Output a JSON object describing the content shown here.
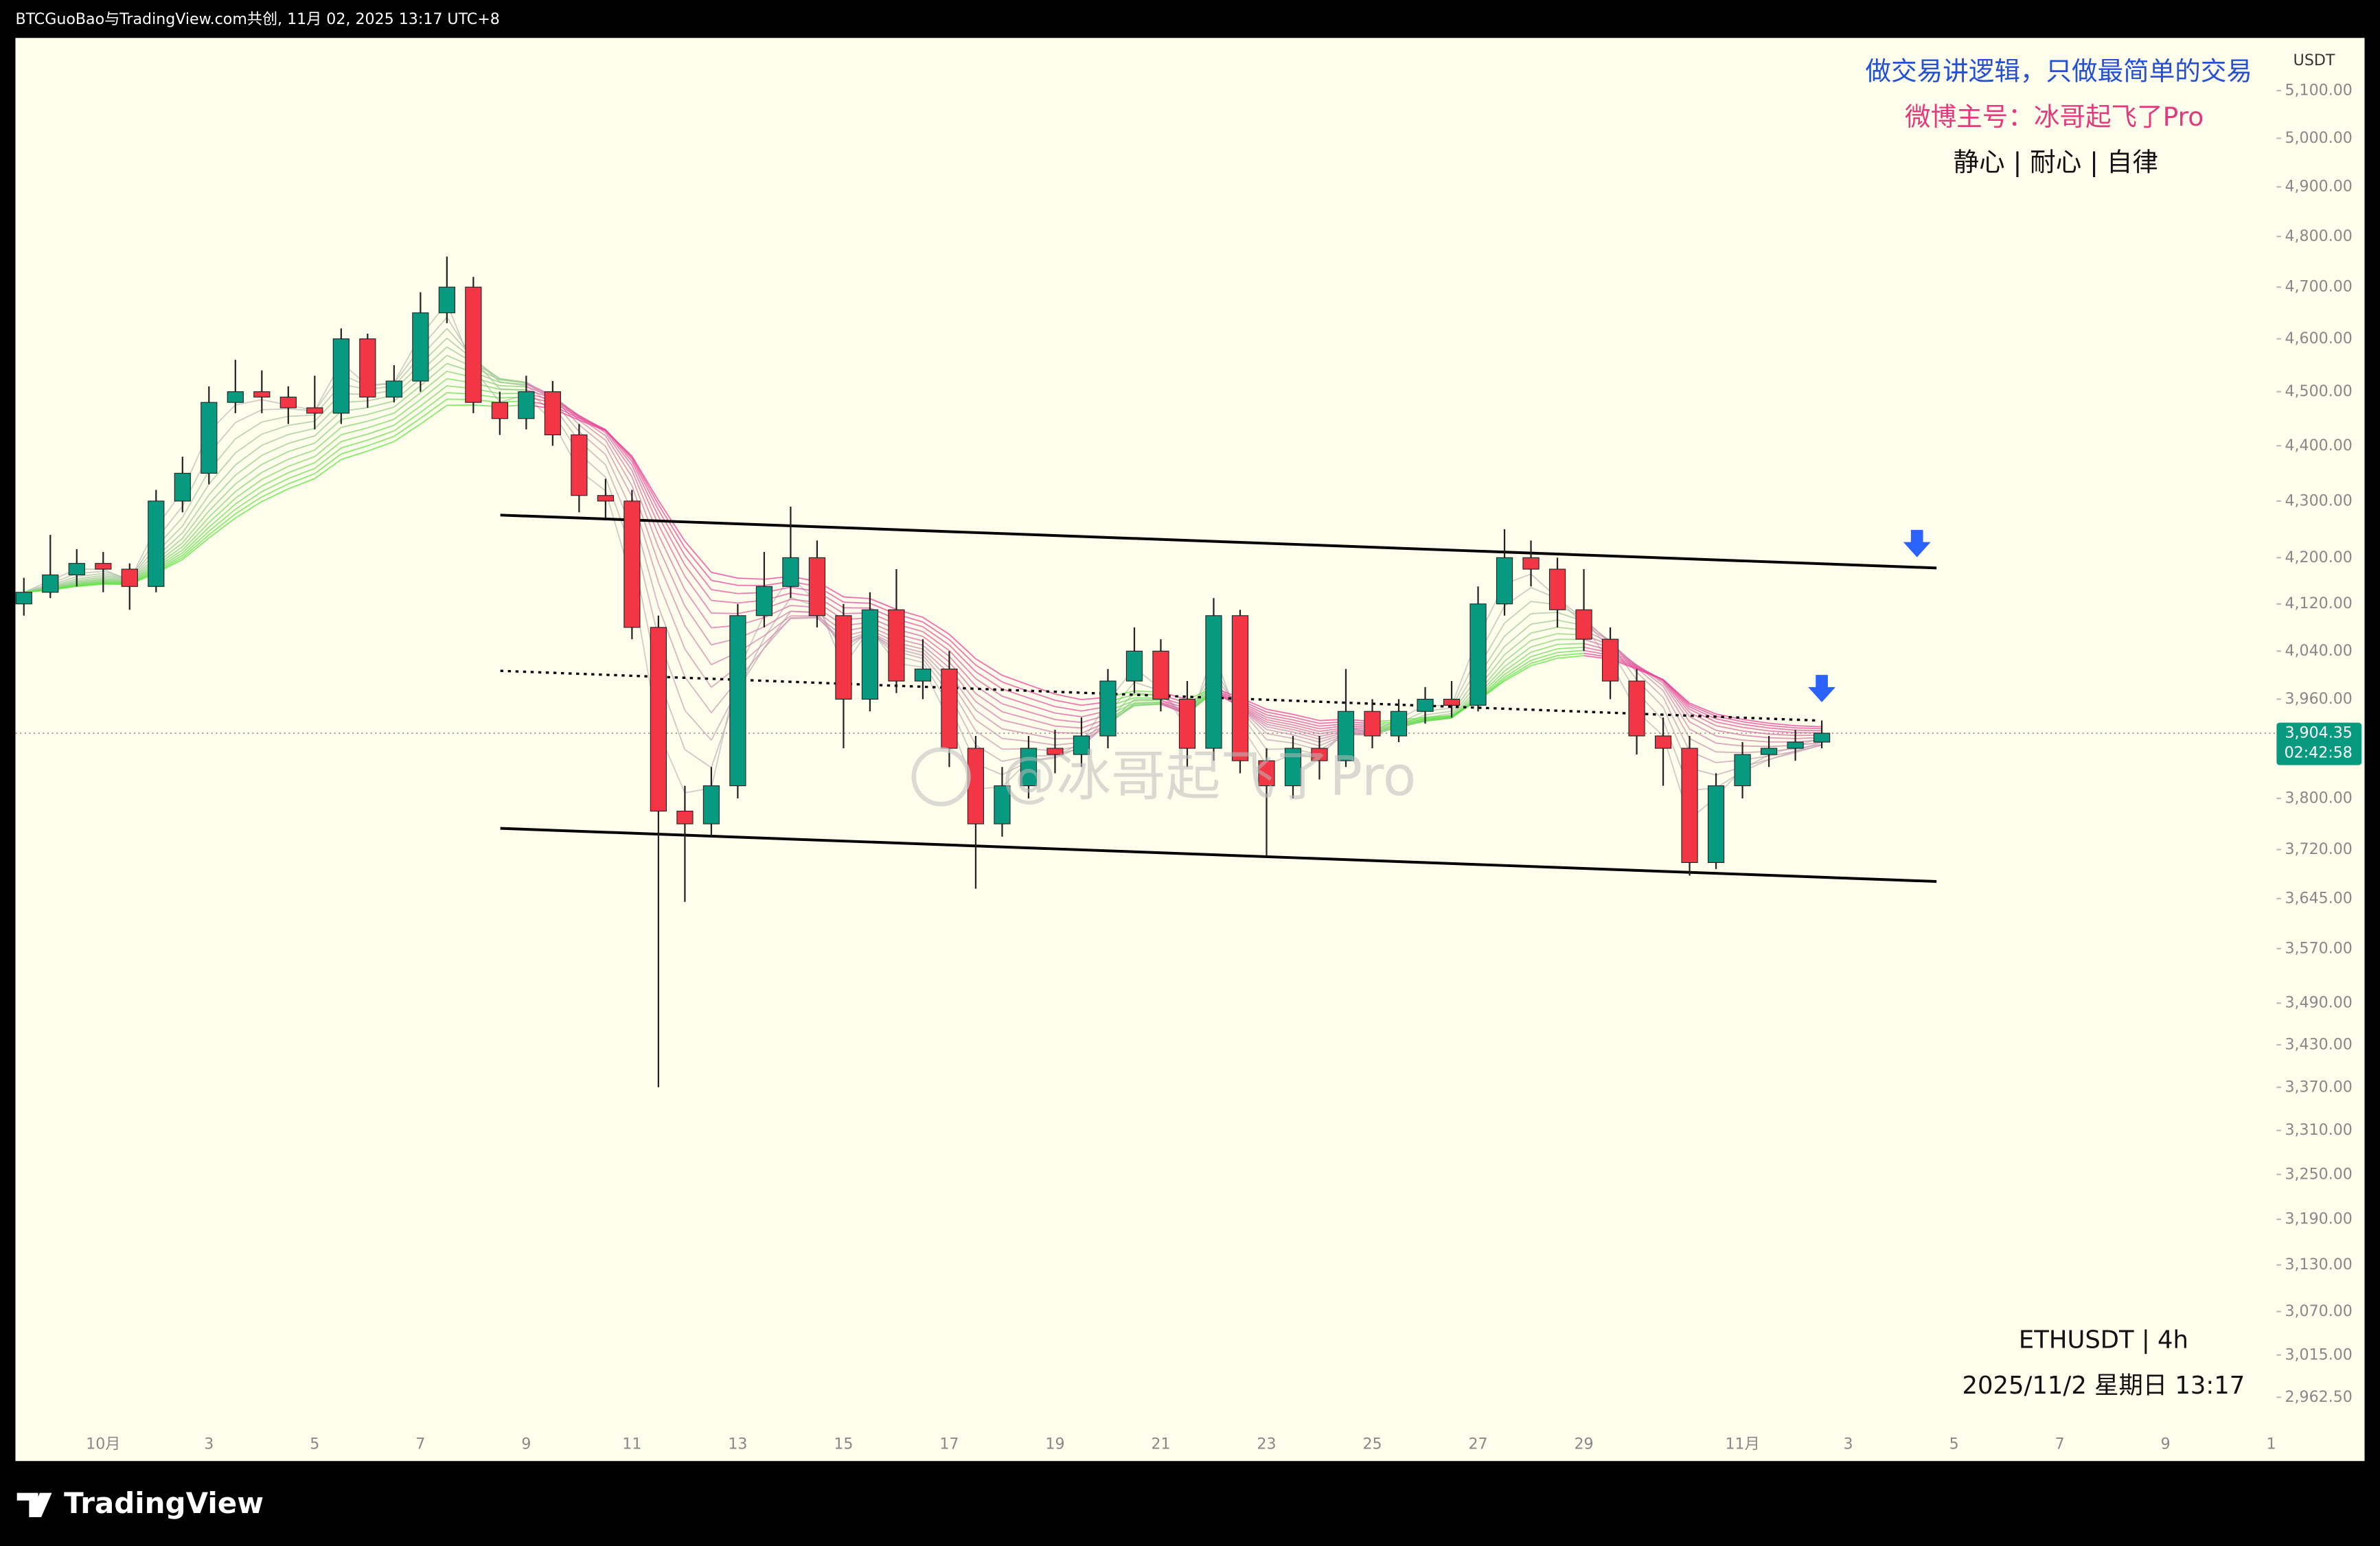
{
  "header": "BTCGuoBao与TradingView.com共创, 11月 02, 2025 13:17 UTC+8",
  "footer": "TradingView",
  "chart_data": {
    "type": "candlestick",
    "currency": "USDT",
    "symbol": "ETHUSDT | 4h",
    "datetime": "2025/11/2 星期日 13:17",
    "watermark": "@冰哥起飞了Pro",
    "annotations": [
      {
        "text": "做交易讲逻辑，只做最简单的交易",
        "color": "#2350d4"
      },
      {
        "text": "微博主号：冰哥起飞了Pro",
        "color": "#e23a7c"
      },
      {
        "text": "静心 | 耐心 | 自律",
        "color": "#111111"
      }
    ],
    "log_scale": true,
    "grid": false,
    "up_color": "#089981",
    "down_color": "#f23645",
    "ylim": [
      2885,
      5213
    ],
    "yticks": [
      {
        "value": 5100,
        "label": "5,100.00"
      },
      {
        "value": 5000,
        "label": "5,000.00"
      },
      {
        "value": 4900,
        "label": "4,900.00"
      },
      {
        "value": 4800,
        "label": "4,800.00"
      },
      {
        "value": 4700,
        "label": "4,700.00"
      },
      {
        "value": 4600,
        "label": "4,600.00"
      },
      {
        "value": 4500,
        "label": "4,500.00"
      },
      {
        "value": 4400,
        "label": "4,400.00"
      },
      {
        "value": 4300,
        "label": "4,300.00"
      },
      {
        "value": 4200,
        "label": "4,200.00"
      },
      {
        "value": 4120,
        "label": "4,120.00"
      },
      {
        "value": 4040,
        "label": "4,040.00"
      },
      {
        "value": 3960,
        "label": "3,960.00"
      },
      {
        "value": 3800,
        "label": "3,800.00"
      },
      {
        "value": 3720,
        "label": "3,720.00"
      },
      {
        "value": 3645,
        "label": "3,645.00"
      },
      {
        "value": 3570,
        "label": "3,570.00"
      },
      {
        "value": 3490,
        "label": "3,490.00"
      },
      {
        "value": 3430,
        "label": "3,430.00"
      },
      {
        "value": 3370,
        "label": "3,370.00"
      },
      {
        "value": 3310,
        "label": "3,310.00"
      },
      {
        "value": 3250,
        "label": "3,250.00"
      },
      {
        "value": 3190,
        "label": "3,190.00"
      },
      {
        "value": 3130,
        "label": "3,130.00"
      },
      {
        "value": 3070,
        "label": "3,070.00"
      },
      {
        "value": 3015,
        "label": "3,015.00"
      },
      {
        "value": 2962.5,
        "label": "2,962.50"
      }
    ],
    "xlim": [
      -1.66,
      41.1
    ],
    "xticks": [
      {
        "value": 0,
        "label": "10月"
      },
      {
        "value": 2,
        "label": "3"
      },
      {
        "value": 4,
        "label": "5"
      },
      {
        "value": 6,
        "label": "7"
      },
      {
        "value": 8,
        "label": "9"
      },
      {
        "value": 10,
        "label": "11"
      },
      {
        "value": 12,
        "label": "13"
      },
      {
        "value": 14,
        "label": "15"
      },
      {
        "value": 16,
        "label": "17"
      },
      {
        "value": 18,
        "label": "19"
      },
      {
        "value": 20,
        "label": "21"
      },
      {
        "value": 22,
        "label": "23"
      },
      {
        "value": 24,
        "label": "25"
      },
      {
        "value": 26,
        "label": "27"
      },
      {
        "value": 28,
        "label": "29"
      },
      {
        "value": 31,
        "label": "11月"
      },
      {
        "value": 33,
        "label": "3"
      },
      {
        "value": 35,
        "label": "5"
      },
      {
        "value": 37,
        "label": "7"
      },
      {
        "value": 39,
        "label": "9"
      },
      {
        "value": 41,
        "label": "1"
      }
    ],
    "last_price": {
      "value": 3904.35,
      "label": "3,904.35"
    },
    "countdown": "02:42:58",
    "ribbon_periods": [
      2,
      3,
      4,
      5,
      6,
      7,
      8,
      9,
      10,
      11,
      12,
      13,
      14
    ],
    "x": [
      -1.5,
      -1,
      -0.5,
      0,
      0.5,
      1,
      1.5,
      2,
      2.5,
      3,
      3.5,
      4,
      4.5,
      5,
      5.5,
      6,
      6.5,
      7,
      7.5,
      8,
      8.5,
      9,
      9.5,
      10,
      10.5,
      11,
      11.5,
      12,
      12.5,
      13,
      13.5,
      14,
      14.5,
      15,
      15.5,
      16,
      16.5,
      17,
      17.5,
      18,
      18.5,
      19,
      19.5,
      20,
      20.5,
      21,
      21.5,
      22,
      22.5,
      23,
      23.5,
      24,
      24.5,
      25,
      25.5,
      26,
      26.5,
      27,
      27.5,
      28,
      28.5,
      29,
      29.5,
      30,
      30.5,
      31,
      31.5,
      32,
      32.5
    ],
    "open": [
      4120,
      4140,
      4170,
      4190,
      4180,
      4150,
      4300,
      4350,
      4480,
      4500,
      4490,
      4470,
      4460,
      4600,
      4490,
      4520,
      4650,
      4700,
      4480,
      4450,
      4500,
      4420,
      4310,
      4300,
      4080,
      3780,
      3760,
      3820,
      4100,
      4150,
      4200,
      4100,
      3960,
      4110,
      3990,
      4010,
      3880,
      3760,
      3820,
      3880,
      3870,
      3900,
      3990,
      4040,
      3960,
      3880,
      4100,
      3860,
      3820,
      3880,
      3860,
      3940,
      3900,
      3940,
      3960,
      3950,
      4120,
      4200,
      4180,
      4110,
      4060,
      3990,
      3900,
      3880,
      3700,
      3820,
      3870,
      3880,
      3890
    ],
    "high": [
      4165,
      4240,
      4215,
      4210,
      4190,
      4320,
      4380,
      4510,
      4560,
      4540,
      4510,
      4530,
      4620,
      4610,
      4550,
      4690,
      4760,
      4720,
      4500,
      4530,
      4520,
      4440,
      4340,
      4320,
      4100,
      3820,
      3850,
      4120,
      4210,
      4290,
      4230,
      4120,
      4140,
      4180,
      4060,
      4040,
      3900,
      3850,
      3900,
      3910,
      3930,
      4010,
      4080,
      4060,
      3990,
      4130,
      4110,
      3880,
      3900,
      3900,
      4010,
      3960,
      3960,
      3980,
      3990,
      4150,
      4250,
      4230,
      4200,
      4180,
      4080,
      4010,
      3930,
      3900,
      3840,
      3890,
      3900,
      3910,
      3925
    ],
    "low": [
      4100,
      4130,
      4150,
      4140,
      4110,
      4140,
      4280,
      4330,
      4460,
      4460,
      4440,
      4430,
      4440,
      4470,
      4480,
      4500,
      4630,
      4460,
      4420,
      4430,
      4400,
      4280,
      4270,
      4060,
      3370,
      3640,
      3740,
      3800,
      4080,
      4130,
      4080,
      3880,
      3940,
      3970,
      3960,
      3850,
      3660,
      3740,
      3800,
      3840,
      3850,
      3880,
      3970,
      3940,
      3850,
      3860,
      3840,
      3710,
      3800,
      3830,
      3850,
      3880,
      3890,
      3920,
      3930,
      3940,
      4100,
      4150,
      4080,
      4040,
      3960,
      3870,
      3820,
      3680,
      3690,
      3800,
      3850,
      3860,
      3880
    ],
    "close": [
      4140,
      4170,
      4190,
      4180,
      4150,
      4300,
      4350,
      4480,
      4500,
      4490,
      4470,
      4460,
      4600,
      4490,
      4520,
      4650,
      4700,
      4480,
      4450,
      4500,
      4420,
      4310,
      4300,
      4080,
      3780,
      3760,
      3820,
      4100,
      4150,
      4200,
      4100,
      3960,
      4110,
      3990,
      4010,
      3880,
      3760,
      3820,
      3880,
      3870,
      3900,
      3990,
      4040,
      3960,
      3880,
      4100,
      3860,
      3820,
      3880,
      3860,
      3940,
      3900,
      3940,
      3960,
      3950,
      4120,
      4200,
      4180,
      4110,
      4060,
      3990,
      3900,
      3880,
      3700,
      3820,
      3870,
      3880,
      3890,
      3904.35
    ],
    "lines": [
      {
        "style": "solid",
        "x": [
          7.51,
          34.67
        ],
        "y": [
          4275,
          4182
        ]
      },
      {
        "style": "solid",
        "x": [
          7.51,
          34.67
        ],
        "y": [
          3753,
          3671
        ]
      },
      {
        "style": "dotted",
        "x": [
          7.51,
          32.44
        ],
        "y": [
          4007,
          3925
        ]
      }
    ],
    "arrows": [
      {
        "x": 34.3,
        "y": 4222,
        "color": "#2962ff"
      },
      {
        "x": 32.5,
        "y": 3975,
        "color": "#2962ff"
      }
    ]
  }
}
